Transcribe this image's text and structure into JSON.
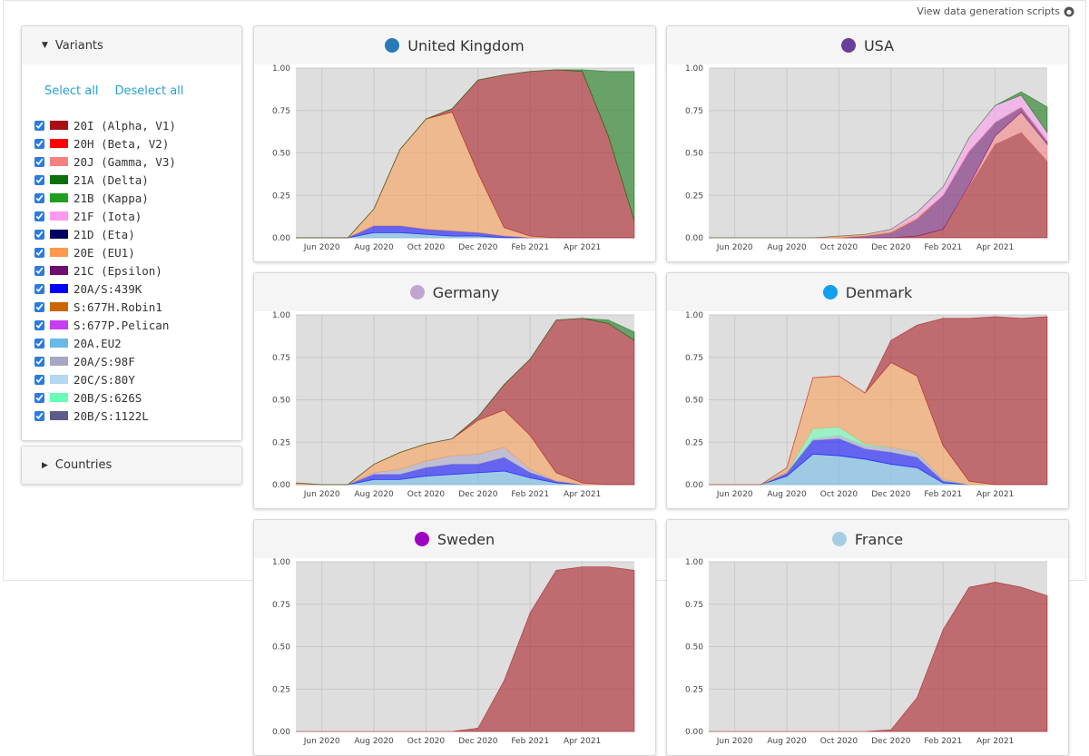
{
  "header": {
    "link": "View data generation scripts"
  },
  "sidebar": {
    "variants_title": "Variants",
    "select_all": "Select all",
    "deselect_all": "Deselect all",
    "countries_title": "Countries",
    "variants": [
      {
        "name": "20I (Alpha, V1)",
        "color": "#a50f15"
      },
      {
        "name": "20H (Beta, V2)",
        "color": "#fe0000"
      },
      {
        "name": "20J (Gamma, V3)",
        "color": "#f88080"
      },
      {
        "name": "21A (Delta)",
        "color": "#087108"
      },
      {
        "name": "21B (Kappa)",
        "color": "#1f9f1f"
      },
      {
        "name": "21F (Iota)",
        "color": "#ff99f0"
      },
      {
        "name": "21D (Eta)",
        "color": "#000060"
      },
      {
        "name": "20E (EU1)",
        "color": "#fb9a4e"
      },
      {
        "name": "21C (Epsilon)",
        "color": "#6e0e6e"
      },
      {
        "name": "20A/S:439K",
        "color": "#0000ff"
      },
      {
        "name": "S:677H.Robin1",
        "color": "#cc6600"
      },
      {
        "name": "S:677P.Pelican",
        "color": "#c53ff0"
      },
      {
        "name": "20A.EU2",
        "color": "#6ab9e8"
      },
      {
        "name": "20A/S:98F",
        "color": "#a6a6c6"
      },
      {
        "name": "20C/S:80Y",
        "color": "#b3d8f0"
      },
      {
        "name": "20B/S:626S",
        "color": "#66ffb2"
      },
      {
        "name": "20B/S:1122L",
        "color": "#5c5c8c"
      }
    ]
  },
  "chart_data": [
    {
      "type": "area",
      "title": "United Kingdom",
      "marker_color": "#2a7ab8",
      "grid": true,
      "x": [
        "2020-05",
        "2020-06",
        "2020-07",
        "2020-08",
        "2020-09",
        "2020-10",
        "2020-11",
        "2020-12",
        "2021-01",
        "2021-02",
        "2021-03",
        "2021-04",
        "2021-05",
        "2021-06"
      ],
      "xlim": [
        "2020-05",
        "2021-06"
      ],
      "xticks": [
        {
          "value": "2020-06",
          "label": "Jun 2020"
        },
        {
          "value": "2020-08",
          "label": "Aug 2020"
        },
        {
          "value": "2020-10",
          "label": "Oct 2020"
        },
        {
          "value": "2020-12",
          "label": "Dec 2020"
        },
        {
          "value": "2021-02",
          "label": "Feb 2021"
        },
        {
          "value": "2021-04",
          "label": "Apr 2021"
        }
      ],
      "ylim": [
        0,
        1
      ],
      "yticks": [
        {
          "value": 0,
          "label": "0.00"
        },
        0.25,
        {
          "value": 0.5,
          "label": "0.50"
        },
        0.75,
        {
          "value": 1,
          "label": "1.00"
        }
      ],
      "series": [
        {
          "color": "#6ab9e8",
          "values": [
            0,
            0,
            0,
            0.03,
            0.03,
            0.02,
            0.01,
            0.01,
            0,
            0,
            0,
            0,
            0,
            0
          ]
        },
        {
          "color": "#0000ff",
          "values": [
            0,
            0,
            0,
            0.04,
            0.04,
            0.03,
            0.03,
            0.02,
            0.01,
            0,
            0,
            0,
            0,
            0
          ]
        },
        {
          "color": "#fb9a4e",
          "values": [
            0,
            0,
            0,
            0.1,
            0.45,
            0.65,
            0.7,
            0.35,
            0.05,
            0.01,
            0,
            0,
            0,
            0
          ]
        },
        {
          "color": "#a50f15",
          "values": [
            0,
            0,
            0,
            0,
            0,
            0,
            0.02,
            0.55,
            0.9,
            0.97,
            0.99,
            0.98,
            0.6,
            0.1
          ]
        },
        {
          "color": "#087108",
          "values": [
            0,
            0,
            0,
            0,
            0,
            0,
            0,
            0,
            0,
            0,
            0,
            0.01,
            0.38,
            0.88
          ]
        }
      ]
    },
    {
      "type": "area",
      "title": "USA",
      "marker_color": "#6a3d9a",
      "grid": true,
      "x": [
        "2020-05",
        "2020-06",
        "2020-07",
        "2020-08",
        "2020-09",
        "2020-10",
        "2020-11",
        "2020-12",
        "2021-01",
        "2021-02",
        "2021-03",
        "2021-04",
        "2021-05",
        "2021-06"
      ],
      "xlim": [
        "2020-05",
        "2021-06"
      ],
      "xticks": [
        {
          "value": "2020-06",
          "label": "Jun 2020"
        },
        {
          "value": "2020-08",
          "label": "Aug 2020"
        },
        {
          "value": "2020-10",
          "label": "Oct 2020"
        },
        {
          "value": "2020-12",
          "label": "Dec 2020"
        },
        {
          "value": "2021-02",
          "label": "Feb 2021"
        },
        {
          "value": "2021-04",
          "label": "Apr 2021"
        }
      ],
      "ylim": [
        0,
        1
      ],
      "yticks": [
        {
          "value": 0,
          "label": "0.00"
        },
        0.25,
        {
          "value": 0.5,
          "label": "0.50"
        },
        0.75,
        {
          "value": 1,
          "label": "1.00"
        }
      ],
      "series": [
        {
          "color": "#a50f15",
          "values": [
            0,
            0,
            0,
            0,
            0,
            0,
            0,
            0,
            0.01,
            0.05,
            0.3,
            0.55,
            0.62,
            0.45
          ]
        },
        {
          "color": "#f88080",
          "values": [
            0,
            0,
            0,
            0,
            0,
            0,
            0,
            0,
            0,
            0,
            0.01,
            0.05,
            0.12,
            0.1
          ]
        },
        {
          "color": "#6e0e6e",
          "values": [
            0,
            0,
            0,
            0,
            0,
            0,
            0.01,
            0.03,
            0.1,
            0.2,
            0.2,
            0.08,
            0.03,
            0.02
          ]
        },
        {
          "color": "#fb9a4e",
          "values": [
            0,
            0,
            0,
            0,
            0,
            0.01,
            0.01,
            0.01,
            0.01,
            0,
            0,
            0,
            0,
            0
          ]
        },
        {
          "color": "#ff99f0",
          "values": [
            0,
            0,
            0,
            0,
            0,
            0,
            0,
            0.01,
            0.03,
            0.05,
            0.08,
            0.1,
            0.07,
            0.05
          ]
        },
        {
          "color": "#087108",
          "values": [
            0,
            0,
            0,
            0,
            0,
            0,
            0,
            0,
            0,
            0,
            0,
            0,
            0.02,
            0.15
          ]
        }
      ]
    },
    {
      "type": "area",
      "title": "Germany",
      "marker_color": "#c2a5cf",
      "grid": true,
      "x": [
        "2020-05",
        "2020-06",
        "2020-07",
        "2020-08",
        "2020-09",
        "2020-10",
        "2020-11",
        "2020-12",
        "2021-01",
        "2021-02",
        "2021-03",
        "2021-04",
        "2021-05",
        "2021-06"
      ],
      "xlim": [
        "2020-05",
        "2021-06"
      ],
      "xticks": [
        {
          "value": "2020-06",
          "label": "Jun 2020"
        },
        {
          "value": "2020-08",
          "label": "Aug 2020"
        },
        {
          "value": "2020-10",
          "label": "Oct 2020"
        },
        {
          "value": "2020-12",
          "label": "Dec 2020"
        },
        {
          "value": "2021-02",
          "label": "Feb 2021"
        },
        {
          "value": "2021-04",
          "label": "Apr 2021"
        }
      ],
      "ylim": [
        0,
        1
      ],
      "yticks": [
        {
          "value": 0,
          "label": "0.00"
        },
        0.25,
        {
          "value": 0.5,
          "label": "0.50"
        },
        0.75,
        {
          "value": 1,
          "label": "1.00"
        }
      ],
      "series": [
        {
          "color": "#6ab9e8",
          "values": [
            0,
            0,
            0,
            0.03,
            0.03,
            0.05,
            0.06,
            0.07,
            0.08,
            0.04,
            0.01,
            0,
            0,
            0
          ]
        },
        {
          "color": "#0000ff",
          "values": [
            0,
            0,
            0,
            0.03,
            0.03,
            0.05,
            0.06,
            0.05,
            0.08,
            0.03,
            0.01,
            0,
            0,
            0
          ]
        },
        {
          "color": "#a6a6c6",
          "values": [
            0,
            0,
            0,
            0.01,
            0.03,
            0.04,
            0.05,
            0.06,
            0.06,
            0.02,
            0,
            0,
            0,
            0
          ]
        },
        {
          "color": "#fb9a4e",
          "values": [
            0.01,
            0,
            0,
            0.05,
            0.1,
            0.1,
            0.1,
            0.2,
            0.22,
            0.2,
            0.05,
            0.01,
            0,
            0
          ]
        },
        {
          "color": "#a50f15",
          "values": [
            0,
            0,
            0,
            0,
            0,
            0,
            0,
            0.02,
            0.15,
            0.45,
            0.9,
            0.97,
            0.95,
            0.85
          ]
        },
        {
          "color": "#087108",
          "values": [
            0,
            0,
            0,
            0,
            0,
            0,
            0,
            0,
            0,
            0,
            0,
            0,
            0.02,
            0.05
          ]
        }
      ]
    },
    {
      "type": "area",
      "title": "Denmark",
      "marker_color": "#0fa0ef",
      "grid": true,
      "x": [
        "2020-05",
        "2020-06",
        "2020-07",
        "2020-08",
        "2020-09",
        "2020-10",
        "2020-11",
        "2020-12",
        "2021-01",
        "2021-02",
        "2021-03",
        "2021-04",
        "2021-05",
        "2021-06"
      ],
      "xlim": [
        "2020-05",
        "2021-06"
      ],
      "xticks": [
        {
          "value": "2020-06",
          "label": "Jun 2020"
        },
        {
          "value": "2020-08",
          "label": "Aug 2020"
        },
        {
          "value": "2020-10",
          "label": "Oct 2020"
        },
        {
          "value": "2020-12",
          "label": "Dec 2020"
        },
        {
          "value": "2021-02",
          "label": "Feb 2021"
        },
        {
          "value": "2021-04",
          "label": "Apr 2021"
        }
      ],
      "ylim": [
        0,
        1
      ],
      "yticks": [
        {
          "value": 0,
          "label": "0.00"
        },
        0.25,
        {
          "value": 0.5,
          "label": "0.50"
        },
        0.75,
        {
          "value": 1,
          "label": "1.00"
        }
      ],
      "series": [
        {
          "color": "#6ab9e8",
          "values": [
            0,
            0,
            0,
            0.05,
            0.18,
            0.17,
            0.15,
            0.12,
            0.1,
            0.01,
            0,
            0,
            0,
            0
          ]
        },
        {
          "color": "#0000ff",
          "values": [
            0,
            0,
            0,
            0.02,
            0.08,
            0.1,
            0.06,
            0.07,
            0.06,
            0.01,
            0,
            0,
            0,
            0
          ]
        },
        {
          "color": "#a6a6c6",
          "values": [
            0,
            0,
            0,
            0,
            0.01,
            0.02,
            0.02,
            0.03,
            0.03,
            0.01,
            0,
            0,
            0,
            0
          ]
        },
        {
          "color": "#66ffb2",
          "values": [
            0,
            0,
            0,
            0,
            0.06,
            0.05,
            0.01,
            0,
            0,
            0,
            0,
            0,
            0,
            0
          ]
        },
        {
          "color": "#fb9a4e",
          "values": [
            0,
            0,
            0,
            0.03,
            0.3,
            0.3,
            0.3,
            0.5,
            0.45,
            0.2,
            0.02,
            0,
            0,
            0
          ]
        },
        {
          "color": "#a50f15",
          "values": [
            0,
            0,
            0,
            0,
            0,
            0,
            0,
            0.13,
            0.3,
            0.75,
            0.96,
            0.99,
            0.98,
            0.99
          ]
        }
      ]
    },
    {
      "type": "area",
      "title": "Sweden",
      "marker_color": "#9f00c5",
      "grid": true,
      "x": [
        "2020-05",
        "2020-06",
        "2020-07",
        "2020-08",
        "2020-09",
        "2020-10",
        "2020-11",
        "2020-12",
        "2021-01",
        "2021-02",
        "2021-03",
        "2021-04",
        "2021-05",
        "2021-06"
      ],
      "xlim": [
        "2020-05",
        "2021-06"
      ],
      "xticks": [
        {
          "value": "2020-06",
          "label": "Jun 2020"
        },
        {
          "value": "2020-08",
          "label": "Aug 2020"
        },
        {
          "value": "2020-10",
          "label": "Oct 2020"
        },
        {
          "value": "2020-12",
          "label": "Dec 2020"
        },
        {
          "value": "2021-02",
          "label": "Feb 2021"
        },
        {
          "value": "2021-04",
          "label": "Apr 2021"
        }
      ],
      "ylim": [
        0,
        1
      ],
      "yticks": [
        {
          "value": 0,
          "label": "0.00"
        },
        0.25,
        {
          "value": 0.5,
          "label": "0.50"
        },
        0.75,
        {
          "value": 1,
          "label": "1.00"
        }
      ],
      "series": [
        {
          "color": "#a50f15",
          "values": [
            0,
            0,
            0,
            0,
            0,
            0,
            0,
            0.02,
            0.3,
            0.7,
            0.95,
            0.97,
            0.97,
            0.95
          ]
        }
      ]
    },
    {
      "type": "area",
      "title": "France",
      "marker_color": "#a6cee3",
      "grid": true,
      "x": [
        "2020-05",
        "2020-06",
        "2020-07",
        "2020-08",
        "2020-09",
        "2020-10",
        "2020-11",
        "2020-12",
        "2021-01",
        "2021-02",
        "2021-03",
        "2021-04",
        "2021-05",
        "2021-06"
      ],
      "xlim": [
        "2020-05",
        "2021-06"
      ],
      "xticks": [
        {
          "value": "2020-06",
          "label": "Jun 2020"
        },
        {
          "value": "2020-08",
          "label": "Aug 2020"
        },
        {
          "value": "2020-10",
          "label": "Oct 2020"
        },
        {
          "value": "2020-12",
          "label": "Dec 2020"
        },
        {
          "value": "2021-02",
          "label": "Feb 2021"
        },
        {
          "value": "2021-04",
          "label": "Apr 2021"
        }
      ],
      "ylim": [
        0,
        1
      ],
      "yticks": [
        {
          "value": 0,
          "label": "0.00"
        },
        0.25,
        {
          "value": 0.5,
          "label": "0.50"
        },
        0.75,
        {
          "value": 1,
          "label": "1.00"
        }
      ],
      "series": [
        {
          "color": "#a50f15",
          "values": [
            0,
            0,
            0,
            0,
            0,
            0,
            0,
            0.01,
            0.2,
            0.6,
            0.85,
            0.88,
            0.85,
            0.8
          ]
        }
      ]
    }
  ]
}
